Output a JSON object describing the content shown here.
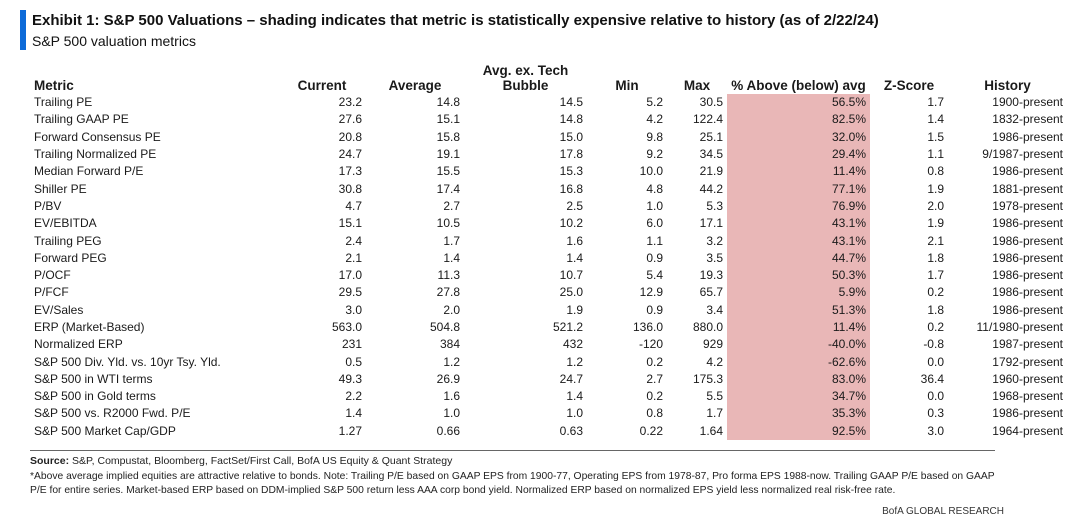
{
  "header": {
    "title": "Exhibit 1: S&P 500 Valuations – shading indicates that metric is statistically expensive relative to history (as of 2/22/24)",
    "subtitle": "S&P 500 valuation metrics",
    "accent_color": "#0d6ad8"
  },
  "table": {
    "shade_color": "#e9b7b7",
    "columns": [
      "Metric",
      "Current",
      "Average",
      "Avg. ex. Tech Bubble",
      "Min",
      "Max",
      "% Above (below) avg",
      "Z-Score",
      "History"
    ],
    "rows": [
      [
        "Trailing PE",
        "23.2",
        "14.8",
        "14.5",
        "5.2",
        "30.5",
        "56.5%",
        "1.7",
        "1900-present"
      ],
      [
        "Trailing GAAP PE",
        "27.6",
        "15.1",
        "14.8",
        "4.2",
        "122.4",
        "82.5%",
        "1.4",
        "1832-present"
      ],
      [
        "Forward Consensus PE",
        "20.8",
        "15.8",
        "15.0",
        "9.8",
        "25.1",
        "32.0%",
        "1.5",
        "1986-present"
      ],
      [
        "Trailing Normalized PE",
        "24.7",
        "19.1",
        "17.8",
        "9.2",
        "34.5",
        "29.4%",
        "1.1",
        "9/1987-present"
      ],
      [
        "Median Forward P/E",
        "17.3",
        "15.5",
        "15.3",
        "10.0",
        "21.9",
        "11.4%",
        "0.8",
        "1986-present"
      ],
      [
        "Shiller PE",
        "30.8",
        "17.4",
        "16.8",
        "4.8",
        "44.2",
        "77.1%",
        "1.9",
        "1881-present"
      ],
      [
        "P/BV",
        "4.7",
        "2.7",
        "2.5",
        "1.0",
        "5.3",
        "76.9%",
        "2.0",
        "1978-present"
      ],
      [
        "EV/EBITDA",
        "15.1",
        "10.5",
        "10.2",
        "6.0",
        "17.1",
        "43.1%",
        "1.9",
        "1986-present"
      ],
      [
        "Trailing PEG",
        "2.4",
        "1.7",
        "1.6",
        "1.1",
        "3.2",
        "43.1%",
        "2.1",
        "1986-present"
      ],
      [
        "Forward PEG",
        "2.1",
        "1.4",
        "1.4",
        "0.9",
        "3.5",
        "44.7%",
        "1.8",
        "1986-present"
      ],
      [
        "P/OCF",
        "17.0",
        "11.3",
        "10.7",
        "5.4",
        "19.3",
        "50.3%",
        "1.7",
        "1986-present"
      ],
      [
        "P/FCF",
        "29.5",
        "27.8",
        "25.0",
        "12.9",
        "65.7",
        "5.9%",
        "0.2",
        "1986-present"
      ],
      [
        "EV/Sales",
        "3.0",
        "2.0",
        "1.9",
        "0.9",
        "3.4",
        "51.3%",
        "1.8",
        "1986-present"
      ],
      [
        "ERP (Market-Based)",
        "563.0",
        "504.8",
        "521.2",
        "136.0",
        "880.0",
        "11.4%",
        "0.2",
        "11/1980-present"
      ],
      [
        "Normalized ERP",
        "231",
        "384",
        "432",
        "-120",
        "929",
        "-40.0%",
        "-0.8",
        "1987-present"
      ],
      [
        "S&P 500 Div. Yld. vs. 10yr Tsy. Yld.",
        "0.5",
        "1.2",
        "1.2",
        "0.2",
        "4.2",
        "-62.6%",
        "0.0",
        "1792-present"
      ],
      [
        "S&P 500 in WTI terms",
        "49.3",
        "26.9",
        "24.7",
        "2.7",
        "175.3",
        "83.0%",
        "36.4",
        "1960-present"
      ],
      [
        "S&P 500 in Gold terms",
        "2.2",
        "1.6",
        "1.4",
        "0.2",
        "5.5",
        "34.7%",
        "0.0",
        "1968-present"
      ],
      [
        "S&P 500 vs. R2000 Fwd. P/E",
        "1.4",
        "1.0",
        "1.0",
        "0.8",
        "1.7",
        "35.3%",
        "0.3",
        "1986-present"
      ],
      [
        "S&P 500 Market Cap/GDP",
        "1.27",
        "0.66",
        "0.63",
        "0.22",
        "1.64",
        "92.5%",
        "3.0",
        "1964-present"
      ]
    ]
  },
  "footer": {
    "source_label": "Source:",
    "source_text": " S&P, Compustat, Bloomberg, FactSet/First Call, BofA US Equity & Quant Strategy",
    "note": "*Above average implied equities are attractive relative to bonds.  Note: Trailing P/E based on GAAP EPS from 1900-77, Operating EPS from 1978-87, Pro forma EPS 1988-now. Trailing GAAP P/E based on GAAP P/E for entire series. Market-based ERP based on DDM-implied S&P 500 return less AAA corp bond yield. Normalized ERP based on normalized EPS yield less normalized real risk-free rate.",
    "brand": "BofA GLOBAL RESEARCH"
  }
}
